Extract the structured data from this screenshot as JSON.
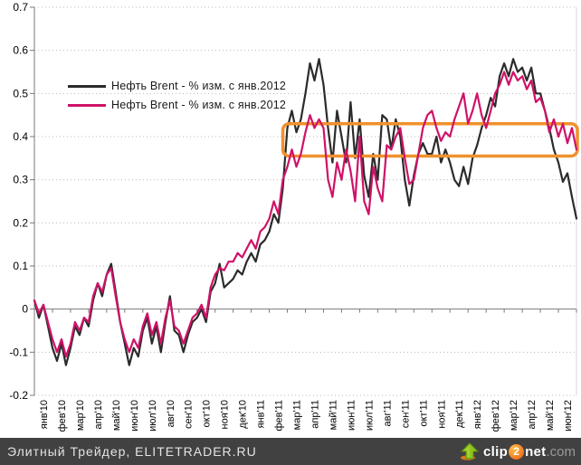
{
  "chart_data": {
    "type": "line",
    "x_labels": [
      "янв'10",
      "фев'10",
      "мар'10",
      "апр'10",
      "май'10",
      "июн'10",
      "июл'10",
      "авг'10",
      "сен'10",
      "окт'10",
      "ноя'10",
      "дек'10",
      "янв'11",
      "фев'11",
      "мар'11",
      "апр'11",
      "май'11",
      "июн'11",
      "июл'11",
      "авг'11",
      "сен'11",
      "окт'11",
      "ноя'11",
      "дек'11",
      "янв'12",
      "фев'12",
      "мар'12",
      "апр'12",
      "май'12",
      "июн'12"
    ],
    "y_ticks": [
      "0.7",
      "0.6",
      "0.5",
      "0.4",
      "0.3",
      "0.2",
      "0.1",
      "0",
      "-0.1",
      "-0.2"
    ],
    "ylim": [
      -0.2,
      0.7
    ],
    "grid": "horizontal-dotted",
    "legend_position": "upper-left-inside",
    "series": [
      {
        "name": "Нефть Brent - % изм. с янв.2012",
        "color": "#2b2b2b",
        "values": [
          0.02,
          -0.02,
          0.01,
          -0.04,
          -0.09,
          -0.12,
          -0.08,
          -0.13,
          -0.09,
          -0.04,
          -0.06,
          -0.02,
          -0.04,
          0.02,
          0.06,
          0.03,
          0.08,
          0.105,
          0.04,
          -0.03,
          -0.08,
          -0.13,
          -0.09,
          -0.11,
          -0.05,
          -0.02,
          -0.08,
          -0.04,
          -0.1,
          -0.03,
          0.03,
          -0.05,
          -0.06,
          -0.1,
          -0.06,
          -0.03,
          -0.02,
          0.0,
          -0.03,
          0.04,
          0.06,
          0.105,
          0.05,
          0.06,
          0.07,
          0.09,
          0.08,
          0.11,
          0.13,
          0.11,
          0.15,
          0.16,
          0.18,
          0.22,
          0.2,
          0.28,
          0.42,
          0.46,
          0.41,
          0.44,
          0.5,
          0.57,
          0.53,
          0.58,
          0.52,
          0.42,
          0.34,
          0.46,
          0.4,
          0.34,
          0.48,
          0.35,
          0.44,
          0.31,
          0.26,
          0.36,
          0.3,
          0.45,
          0.44,
          0.37,
          0.44,
          0.4,
          0.3,
          0.24,
          0.31,
          0.36,
          0.385,
          0.36,
          0.36,
          0.4,
          0.34,
          0.37,
          0.34,
          0.3,
          0.285,
          0.33,
          0.29,
          0.35,
          0.38,
          0.42,
          0.45,
          0.49,
          0.47,
          0.54,
          0.57,
          0.54,
          0.58,
          0.55,
          0.56,
          0.53,
          0.56,
          0.5,
          0.5,
          0.46,
          0.42,
          0.37,
          0.34,
          0.295,
          0.315,
          0.26,
          0.21
        ]
      },
      {
        "name": "Нефть Brent - % изм. с янв.2012",
        "color": "#cf1268",
        "values": [
          0.02,
          -0.01,
          0.01,
          -0.03,
          -0.07,
          -0.1,
          -0.07,
          -0.11,
          -0.08,
          -0.03,
          -0.05,
          -0.02,
          -0.03,
          0.03,
          0.06,
          0.04,
          0.08,
          0.095,
          0.03,
          -0.03,
          -0.07,
          -0.1,
          -0.07,
          -0.09,
          -0.04,
          -0.01,
          -0.06,
          -0.03,
          -0.08,
          -0.02,
          0.02,
          -0.04,
          -0.05,
          -0.08,
          -0.05,
          -0.02,
          -0.01,
          0.01,
          -0.02,
          0.05,
          0.08,
          0.095,
          0.09,
          0.11,
          0.11,
          0.13,
          0.12,
          0.14,
          0.16,
          0.14,
          0.18,
          0.19,
          0.21,
          0.25,
          0.22,
          0.3,
          0.33,
          0.37,
          0.33,
          0.36,
          0.41,
          0.45,
          0.42,
          0.44,
          0.42,
          0.3,
          0.26,
          0.34,
          0.3,
          0.37,
          0.32,
          0.25,
          0.4,
          0.25,
          0.22,
          0.33,
          0.28,
          0.25,
          0.38,
          0.37,
          0.4,
          0.42,
          0.35,
          0.29,
          0.3,
          0.36,
          0.42,
          0.45,
          0.46,
          0.42,
          0.39,
          0.41,
          0.4,
          0.44,
          0.47,
          0.5,
          0.43,
          0.46,
          0.5,
          0.45,
          0.42,
          0.46,
          0.5,
          0.52,
          0.55,
          0.52,
          0.55,
          0.53,
          0.54,
          0.51,
          0.53,
          0.48,
          0.49,
          0.46,
          0.41,
          0.44,
          0.4,
          0.43,
          0.385,
          0.42,
          0.37
        ]
      }
    ],
    "annotation_box": {
      "x0_month": 13.75,
      "x1_month": 30.05,
      "y0": 0.355,
      "y1": 0.43,
      "color": "#f0912d"
    }
  },
  "colors": {
    "grid": "#b8b8b8",
    "axis": "#7a7a7a",
    "plot_right_border": "#d8d8d8",
    "footer_bg": "#414141",
    "footer_text": "#e4e4e4"
  },
  "footer": {
    "text": "Элитный Трейдер, ELITETRADER.RU",
    "logo": {
      "arrow_icon": "clip2net-arrow",
      "part1": "clip",
      "part2": "2",
      "part3": "net",
      "part4": ".com"
    }
  }
}
